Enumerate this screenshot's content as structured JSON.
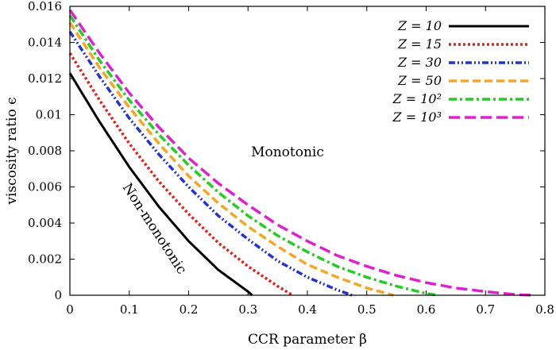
{
  "chart_data": {
    "type": "line",
    "xlabel": "CCR parameter β",
    "ylabel": "viscosity ratio ϵ",
    "xlim": [
      0,
      0.8
    ],
    "ylim": [
      0,
      0.016
    ],
    "x_ticks": [
      "0",
      "0.1",
      "0.2",
      "0.3",
      "0.4",
      "0.5",
      "0.6",
      "0.7",
      "0.8"
    ],
    "y_ticks": [
      "0",
      "0.002",
      "0.004",
      "0.006",
      "0.008",
      "0.01",
      "0.012",
      "0.014",
      "0.016"
    ],
    "grid": false,
    "legend_position": "top-right",
    "annotations": [
      "Monotonic",
      "Non-monotonic"
    ],
    "series": [
      {
        "name": "Z = 10",
        "color": "#000000",
        "dash": "solid",
        "x": [
          0,
          0.05,
          0.1,
          0.15,
          0.2,
          0.25,
          0.3,
          0.307
        ],
        "y": [
          0.0123,
          0.0096,
          0.0071,
          0.0049,
          0.003,
          0.0014,
          0.0002,
          0
        ]
      },
      {
        "name": "Z = 15",
        "color": "#e8201a",
        "dash": "dot",
        "x": [
          0,
          0.05,
          0.1,
          0.15,
          0.2,
          0.25,
          0.3,
          0.35,
          0.375
        ],
        "y": [
          0.0134,
          0.0108,
          0.0084,
          0.0063,
          0.0045,
          0.0029,
          0.0016,
          0.0005,
          0
        ]
      },
      {
        "name": "Z = 30",
        "color": "#2233d4",
        "dash": "dashdotdot",
        "x": [
          0,
          0.05,
          0.1,
          0.15,
          0.2,
          0.25,
          0.3,
          0.35,
          0.4,
          0.45,
          0.475
        ],
        "y": [
          0.0146,
          0.0121,
          0.0098,
          0.0078,
          0.006,
          0.0044,
          0.0031,
          0.0019,
          0.001,
          0.0003,
          0
        ]
      },
      {
        "name": "Z = 50",
        "color": "#f5a623",
        "dash": "dash",
        "x": [
          0,
          0.05,
          0.1,
          0.15,
          0.2,
          0.25,
          0.3,
          0.35,
          0.4,
          0.45,
          0.5,
          0.545
        ],
        "y": [
          0.0151,
          0.0126,
          0.0104,
          0.0084,
          0.0066,
          0.0051,
          0.0038,
          0.0027,
          0.0017,
          0.001,
          0.0004,
          0
        ]
      },
      {
        "name": "Z = 10²",
        "color": "#22cc22",
        "dash": "dashdot",
        "x": [
          0,
          0.05,
          0.1,
          0.15,
          0.2,
          0.25,
          0.3,
          0.35,
          0.4,
          0.45,
          0.5,
          0.55,
          0.6,
          0.62
        ],
        "y": [
          0.0155,
          0.013,
          0.0108,
          0.0089,
          0.0072,
          0.0057,
          0.0044,
          0.0033,
          0.0024,
          0.0016,
          0.001,
          0.0005,
          0.0001,
          0
        ]
      },
      {
        "name": "Z = 10³",
        "color": "#e020d0",
        "dash": "longdash",
        "x": [
          0,
          0.05,
          0.1,
          0.15,
          0.2,
          0.25,
          0.3,
          0.35,
          0.4,
          0.45,
          0.5,
          0.55,
          0.6,
          0.65,
          0.7,
          0.75,
          0.78
        ],
        "y": [
          0.0158,
          0.0134,
          0.0112,
          0.0093,
          0.0076,
          0.0062,
          0.005,
          0.0039,
          0.003,
          0.0022,
          0.0016,
          0.0011,
          0.0007,
          0.0004,
          0.0002,
          4e-05,
          0
        ]
      }
    ]
  }
}
